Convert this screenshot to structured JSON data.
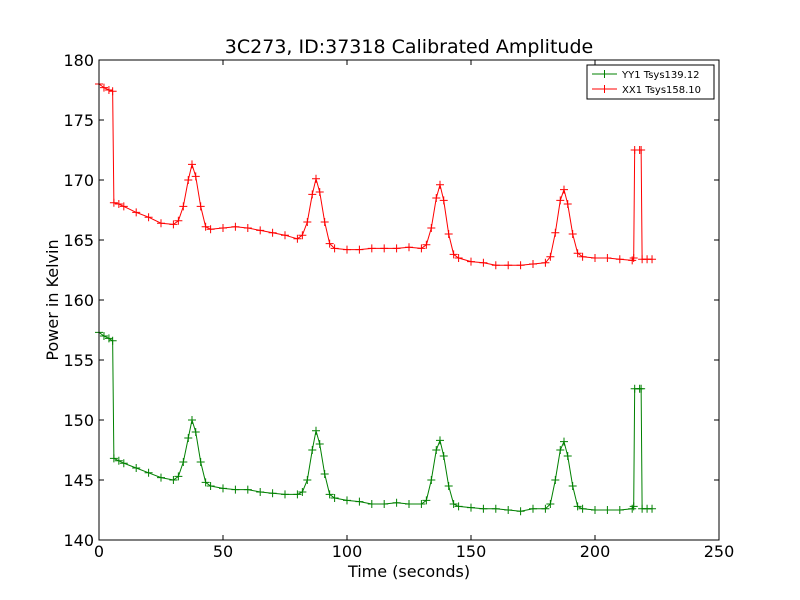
{
  "chart_data": {
    "type": "line",
    "title": "3C273, ID:37318 Calibrated Amplitude",
    "xlabel": "Time (seconds)",
    "ylabel": "Power in Kelvin",
    "xlim": [
      0,
      250
    ],
    "ylim": [
      140,
      180
    ],
    "xticks": [
      "0",
      "50",
      "100",
      "150",
      "200",
      "250"
    ],
    "yticks": [
      "140",
      "145",
      "150",
      "155",
      "160",
      "165",
      "170",
      "175",
      "180"
    ],
    "grid": false,
    "legend_position": "top-right",
    "marker": "plus",
    "series": [
      {
        "name": "YY1 Tsys139.12",
        "color": "#008000",
        "points": [
          [
            0,
            157.3
          ],
          [
            2,
            157.0
          ],
          [
            4,
            156.8
          ],
          [
            5.5,
            156.6
          ],
          [
            6,
            146.8
          ],
          [
            8,
            146.6
          ],
          [
            10,
            146.4
          ],
          [
            15,
            146.0
          ],
          [
            20,
            145.6
          ],
          [
            25,
            145.2
          ],
          [
            30,
            145.0
          ],
          [
            32,
            145.3
          ],
          [
            34,
            146.5
          ],
          [
            36,
            148.5
          ],
          [
            37.5,
            150.0
          ],
          [
            39,
            149.0
          ],
          [
            41,
            146.5
          ],
          [
            43,
            144.8
          ],
          [
            45,
            144.5
          ],
          [
            50,
            144.3
          ],
          [
            55,
            144.2
          ],
          [
            60,
            144.2
          ],
          [
            65,
            144.0
          ],
          [
            70,
            143.9
          ],
          [
            75,
            143.8
          ],
          [
            80,
            143.8
          ],
          [
            82,
            144.0
          ],
          [
            84,
            145.0
          ],
          [
            86,
            147.5
          ],
          [
            87.5,
            149.1
          ],
          [
            89,
            148.0
          ],
          [
            91,
            145.5
          ],
          [
            93,
            143.8
          ],
          [
            95,
            143.5
          ],
          [
            100,
            143.3
          ],
          [
            105,
            143.2
          ],
          [
            110,
            143.0
          ],
          [
            115,
            143.0
          ],
          [
            120,
            143.1
          ],
          [
            125,
            143.0
          ],
          [
            130,
            143.0
          ],
          [
            132,
            143.3
          ],
          [
            134,
            145.0
          ],
          [
            136,
            147.5
          ],
          [
            137.5,
            148.3
          ],
          [
            139,
            147.0
          ],
          [
            141,
            144.5
          ],
          [
            143,
            143.0
          ],
          [
            145,
            142.8
          ],
          [
            150,
            142.7
          ],
          [
            155,
            142.6
          ],
          [
            160,
            142.6
          ],
          [
            165,
            142.5
          ],
          [
            170,
            142.4
          ],
          [
            175,
            142.6
          ],
          [
            180,
            142.6
          ],
          [
            182,
            143.0
          ],
          [
            184,
            145.0
          ],
          [
            186,
            147.5
          ],
          [
            187.5,
            148.2
          ],
          [
            189,
            147.0
          ],
          [
            191,
            144.5
          ],
          [
            193,
            142.8
          ],
          [
            195,
            142.6
          ],
          [
            200,
            142.5
          ],
          [
            205,
            142.5
          ],
          [
            210,
            142.5
          ],
          [
            215,
            142.6
          ],
          [
            215.6,
            142.8
          ],
          [
            216,
            152.6
          ],
          [
            218,
            152.6
          ],
          [
            218.6,
            152.6
          ],
          [
            219,
            142.6
          ],
          [
            221,
            142.6
          ],
          [
            223,
            142.6
          ]
        ]
      },
      {
        "name": "XX1 Tsys158.10",
        "color": "#ff0000",
        "points": [
          [
            0,
            178.0
          ],
          [
            2,
            177.7
          ],
          [
            4,
            177.5
          ],
          [
            5.5,
            177.4
          ],
          [
            6,
            168.1
          ],
          [
            8,
            168.0
          ],
          [
            10,
            167.8
          ],
          [
            15,
            167.3
          ],
          [
            20,
            166.9
          ],
          [
            25,
            166.4
          ],
          [
            30,
            166.3
          ],
          [
            32,
            166.6
          ],
          [
            34,
            167.8
          ],
          [
            36,
            170.0
          ],
          [
            37.5,
            171.3
          ],
          [
            39,
            170.3
          ],
          [
            41,
            167.8
          ],
          [
            43,
            166.1
          ],
          [
            45,
            165.9
          ],
          [
            50,
            166.0
          ],
          [
            55,
            166.1
          ],
          [
            60,
            166.0
          ],
          [
            65,
            165.8
          ],
          [
            70,
            165.6
          ],
          [
            75,
            165.4
          ],
          [
            80,
            165.1
          ],
          [
            82,
            165.4
          ],
          [
            84,
            166.5
          ],
          [
            86,
            168.8
          ],
          [
            87.5,
            170.1
          ],
          [
            89,
            169.0
          ],
          [
            91,
            166.5
          ],
          [
            93,
            164.7
          ],
          [
            95,
            164.3
          ],
          [
            100,
            164.2
          ],
          [
            105,
            164.2
          ],
          [
            110,
            164.3
          ],
          [
            115,
            164.3
          ],
          [
            120,
            164.3
          ],
          [
            125,
            164.4
          ],
          [
            130,
            164.3
          ],
          [
            132,
            164.6
          ],
          [
            134,
            166.0
          ],
          [
            136,
            168.5
          ],
          [
            137.5,
            169.6
          ],
          [
            139,
            168.3
          ],
          [
            141,
            165.5
          ],
          [
            143,
            163.8
          ],
          [
            145,
            163.5
          ],
          [
            150,
            163.2
          ],
          [
            155,
            163.1
          ],
          [
            160,
            162.9
          ],
          [
            165,
            162.9
          ],
          [
            170,
            162.9
          ],
          [
            175,
            163.0
          ],
          [
            180,
            163.1
          ],
          [
            182,
            163.6
          ],
          [
            184,
            165.6
          ],
          [
            186,
            168.3
          ],
          [
            187.5,
            169.2
          ],
          [
            189,
            168.0
          ],
          [
            191,
            165.5
          ],
          [
            193,
            163.9
          ],
          [
            195,
            163.6
          ],
          [
            200,
            163.5
          ],
          [
            205,
            163.5
          ],
          [
            210,
            163.4
          ],
          [
            215,
            163.3
          ],
          [
            215.6,
            163.5
          ],
          [
            216,
            172.5
          ],
          [
            218,
            172.5
          ],
          [
            218.6,
            172.5
          ],
          [
            219,
            163.4
          ],
          [
            221,
            163.4
          ],
          [
            223,
            163.4
          ]
        ]
      }
    ]
  }
}
